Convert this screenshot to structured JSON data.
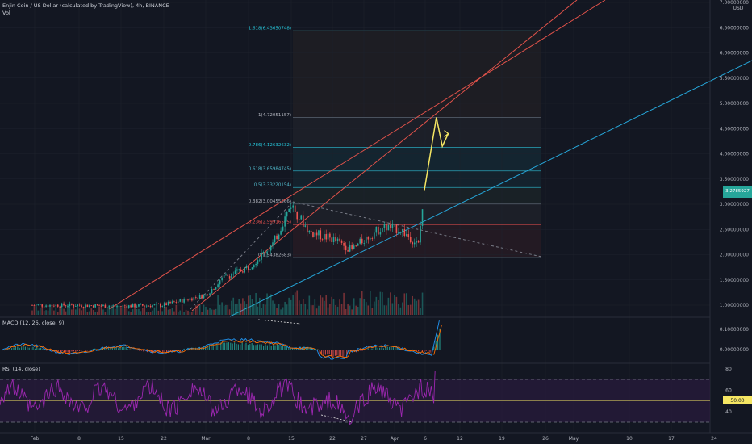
{
  "header": {
    "title": "Enjin Coin / US Dollar (calculated by TradingView), 4h, BINANCE",
    "volume_label": "Vol"
  },
  "colors": {
    "background": "#131722",
    "grid": "#1e222d",
    "axis_text": "#b2b5be",
    "fib_line": "#5a6470",
    "fib_level_0.786": "#26c6da",
    "fib_level_0.236": "#ef5350",
    "trend_red": "#e0524a",
    "trend_blue": "#2196f3",
    "projection": "#f5e663",
    "candle_up": "#26a69a",
    "candle_down": "#ef5350",
    "rsi_line": "#9c27b0",
    "rsi_band": "#2a1b3d",
    "macd_line": "#2196f3",
    "signal_line": "#ff6d00"
  },
  "chart_data": [
    {
      "type": "candlestick",
      "title": "Enjin Coin / US Dollar (calculated by TradingView), 4h, BINANCE",
      "ylabel": "USD",
      "price_axis_ticks": [
        "7.00000000",
        "6.50000000",
        "6.00000000",
        "5.50000000",
        "5.00000000",
        "4.50000000",
        "4.00000000",
        "3.50000000",
        "3.00000000",
        "2.50000000",
        "2.00000000",
        "1.50000000",
        "1.00000000"
      ],
      "ylim": [
        0.9,
        7.0
      ],
      "x_axis_ticks": [
        "Feb",
        "8",
        "15",
        "22",
        "Mar",
        "8",
        "15",
        "22",
        "27",
        "Apr",
        "6",
        "12",
        "19",
        "26",
        "May",
        "10",
        "17",
        "24"
      ],
      "current_price_label": "3.2785927",
      "fib_levels": [
        {
          "ratio": "1.618",
          "label": "1.618(6.43650748)",
          "price": 6.4365
        },
        {
          "ratio": "1",
          "label": "1(4.72051157)",
          "price": 4.7205
        },
        {
          "ratio": "0.786",
          "label": "0.786(4.12632632)",
          "price": 4.1263
        },
        {
          "ratio": "0.618",
          "label": "0.618(3.65984745)",
          "price": 3.6598
        },
        {
          "ratio": "0.5",
          "label": "0.5(3.33220154)",
          "price": 3.3322
        },
        {
          "ratio": "0.382",
          "label": "0.382(3.00455566)",
          "price": 3.0046
        },
        {
          "ratio": "0.236",
          "label": "0.236(2.59916505)",
          "price": 2.5992
        },
        {
          "ratio": "0",
          "label": "0(1.94382683)",
          "price": 1.9438
        }
      ],
      "price_path": [
        {
          "x": "Feb 1",
          "close": 1.0
        },
        {
          "x": "Feb 8",
          "close": 1.0
        },
        {
          "x": "Feb 15",
          "close": 0.98
        },
        {
          "x": "Feb 22",
          "close": 1.0
        },
        {
          "x": "Mar 1",
          "close": 1.2
        },
        {
          "x": "Mar 4",
          "close": 1.55
        },
        {
          "x": "Mar 8",
          "close": 1.75
        },
        {
          "x": "Mar 12",
          "close": 2.2
        },
        {
          "x": "Mar 15",
          "close": 3.0
        },
        {
          "x": "Mar 18",
          "close": 2.45
        },
        {
          "x": "Mar 22",
          "close": 2.3
        },
        {
          "x": "Mar 25",
          "close": 2.1
        },
        {
          "x": "Mar 27",
          "close": 2.3
        },
        {
          "x": "Mar 30",
          "close": 2.55
        },
        {
          "x": "Apr 2",
          "close": 2.5
        },
        {
          "x": "Apr 5",
          "close": 2.2
        },
        {
          "x": "Apr 6",
          "close": 3.28
        }
      ],
      "projection_path": [
        {
          "x": "Apr 6",
          "price": 3.28
        },
        {
          "x": "Apr 8",
          "price": 4.72
        },
        {
          "x": "Apr 9",
          "price": 4.15
        },
        {
          "x": "Apr 10",
          "price": 4.4
        }
      ]
    },
    {
      "type": "bar",
      "title": "MACD (12, 26, close, 9)",
      "axis_ticks": [
        "0.10000000",
        "0.00000000"
      ],
      "ylim": [
        -0.06,
        0.14
      ]
    },
    {
      "type": "line",
      "title": "RSI (14, close)",
      "axis_ticks": [
        "80",
        "60",
        "40"
      ],
      "ylim": [
        25,
        88
      ],
      "band": [
        30,
        70
      ],
      "midline": 50,
      "current_value_label": "50.00"
    }
  ]
}
